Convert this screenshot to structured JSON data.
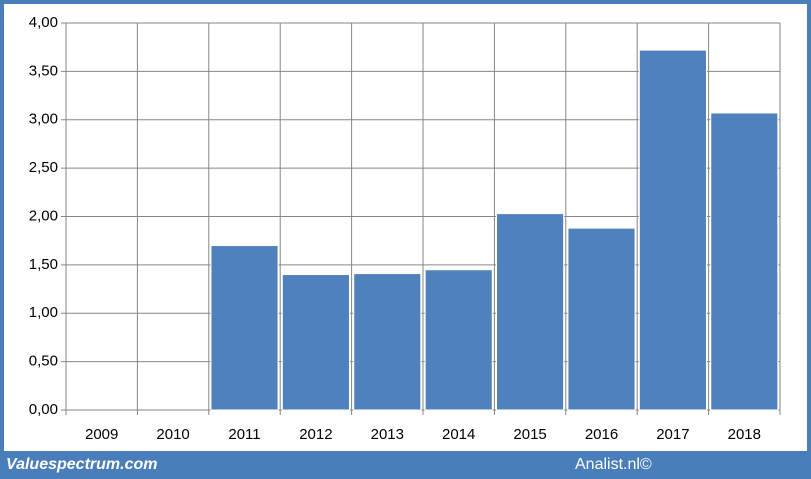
{
  "chart_data": {
    "type": "bar",
    "categories": [
      "2009",
      "2010",
      "2011",
      "2012",
      "2013",
      "2014",
      "2015",
      "2016",
      "2017",
      "2018"
    ],
    "values": [
      null,
      null,
      1.7,
      1.4,
      1.41,
      1.45,
      2.03,
      1.88,
      3.72,
      3.07
    ],
    "color": "#4f81bd",
    "ylim": [
      0,
      4
    ],
    "yticks": [
      {
        "value": 0,
        "label": "0,00"
      },
      {
        "value": 0.5,
        "label": "0,50"
      },
      {
        "value": 1,
        "label": "1,00"
      },
      {
        "value": 1.5,
        "label": "1,50"
      },
      {
        "value": 2,
        "label": "2,00"
      },
      {
        "value": 2.5,
        "label": "2,50"
      },
      {
        "value": 3,
        "label": "3,00"
      },
      {
        "value": 3.5,
        "label": "3,50"
      },
      {
        "value": 4,
        "label": "4,00"
      }
    ],
    "grid": true,
    "footer_left": "Valuespectrum.com",
    "footer_right": "Analist.nl©"
  }
}
